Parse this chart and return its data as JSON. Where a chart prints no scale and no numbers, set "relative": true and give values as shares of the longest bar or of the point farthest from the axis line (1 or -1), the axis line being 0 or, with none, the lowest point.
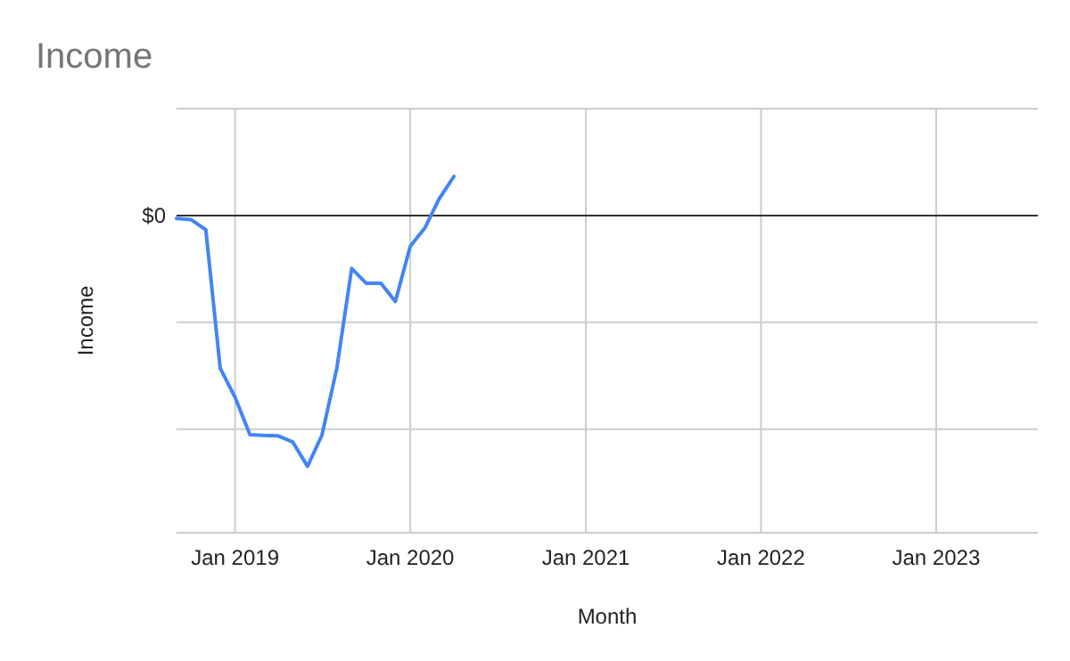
{
  "chart_data": {
    "type": "line",
    "title": "Income",
    "xlabel": "Month",
    "ylabel": "Income",
    "relative": true,
    "grid": true,
    "x": [
      "2018-09",
      "2018-10",
      "2018-11",
      "2018-12",
      "2019-01",
      "2019-02",
      "2019-03",
      "2019-04",
      "2019-05",
      "2019-06",
      "2019-07",
      "2019-08",
      "2019-09",
      "2019-10",
      "2019-11",
      "2019-12",
      "2020-01",
      "2020-02",
      "2020-03",
      "2020-04"
    ],
    "xlim": [
      "2018-09",
      "2023-08"
    ],
    "xticks": [
      {
        "value": "2019-01",
        "label": "Jan 2019"
      },
      {
        "value": "2020-01",
        "label": "Jan 2020"
      },
      {
        "value": "2021-01",
        "label": "Jan 2021"
      },
      {
        "value": "2022-01",
        "label": "Jan 2022"
      },
      {
        "value": "2023-01",
        "label": "Jan 2023"
      }
    ],
    "series": [
      {
        "color": "#4285f4",
        "values": [
          -0.012,
          -0.016,
          -0.057,
          -0.609,
          -0.725,
          -0.874,
          -0.877,
          -0.879,
          -0.903,
          -1,
          -0.876,
          -0.609,
          -0.211,
          -0.27,
          -0.27,
          -0.343,
          -0.123,
          -0.048,
          0.066,
          0.156
        ]
      }
    ],
    "ref_lines": [
      {
        "axis": "y",
        "value": 0,
        "label": "$0",
        "color": "#333333"
      }
    ]
  }
}
